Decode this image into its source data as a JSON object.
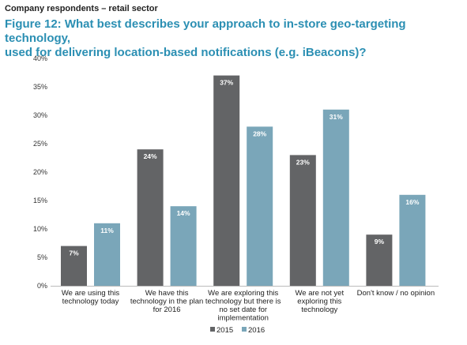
{
  "header": {
    "kicker": "Company respondents – retail sector",
    "title_line1": "Figure 12: What best describes your approach to in-store geo-targeting technology,",
    "title_line2": "used for delivering location-based notifications (e.g. iBeacons)?"
  },
  "colors": {
    "s2015": "#636466",
    "s2016": "#7aa6b9"
  },
  "chart_data": {
    "type": "bar",
    "categories": [
      [
        "We are using this",
        "technology today"
      ],
      [
        "We have this",
        "technology in the plan",
        "for 2016"
      ],
      [
        "We are exploring this",
        "technology but there is",
        "no set date for",
        "implementation"
      ],
      [
        "We are not yet",
        "exploring this",
        "technology"
      ],
      [
        "Don't know / no opinion"
      ]
    ],
    "series": [
      {
        "name": "2015",
        "values": [
          7,
          24,
          37,
          23,
          9
        ],
        "labels": [
          "7%",
          "24%",
          "37%",
          "23%",
          "9%"
        ]
      },
      {
        "name": "2016",
        "values": [
          11,
          14,
          28,
          31,
          16
        ],
        "labels": [
          "11%",
          "14%",
          "28%",
          "31%",
          "16%"
        ]
      }
    ],
    "yticks": [
      "0%",
      "5%",
      "10%",
      "15%",
      "20%",
      "25%",
      "30%",
      "35%",
      "40%"
    ],
    "ylim": [
      0,
      40
    ],
    "grid": false,
    "legend": "bottom-center"
  }
}
